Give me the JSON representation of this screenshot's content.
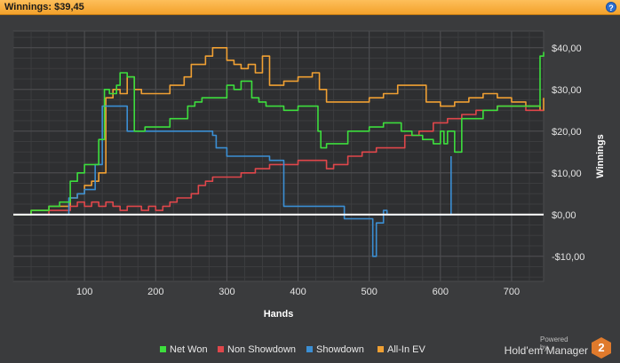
{
  "window": {
    "title": "Winnings: $39,45",
    "help_glyph": "?"
  },
  "branding": {
    "powered_by": "Powered by",
    "product": "Hold'em Manager",
    "logo_number": "2"
  },
  "legend": [
    {
      "label": "Net Won",
      "color": "#3dde3d"
    },
    {
      "label": "Non Showdown",
      "color": "#e0474b"
    },
    {
      "label": "Showdown",
      "color": "#3b8fd4"
    },
    {
      "label": "All-In EV",
      "color": "#f0a033"
    }
  ],
  "chart_data": {
    "type": "line",
    "xlabel": "Hands",
    "ylabel": "Winnings",
    "xlim": [
      0,
      745
    ],
    "ylim": [
      -16,
      44
    ],
    "xticks": [
      100,
      200,
      300,
      400,
      500,
      600,
      700
    ],
    "yticks": [
      -10,
      0,
      10,
      20,
      30,
      40
    ],
    "ytick_labels": [
      "-$10,00",
      "$0,00",
      "$10,00",
      "$20,00",
      "$30,00",
      "$40,00"
    ],
    "grid": true,
    "zero_line": true,
    "legend_position": "bottom",
    "series": [
      {
        "name": "Net Won",
        "color": "#3dde3d",
        "x": [
          0,
          25,
          50,
          65,
          80,
          90,
          100,
          110,
          120,
          128,
          135,
          145,
          150,
          160,
          170,
          185,
          200,
          220,
          245,
          255,
          265,
          300,
          310,
          320,
          335,
          345,
          355,
          380,
          400,
          420,
          428,
          432,
          440,
          460,
          470,
          490,
          500,
          520,
          545,
          560,
          575,
          590,
          600,
          605,
          610,
          620,
          630,
          640,
          660,
          680,
          700,
          720,
          735,
          740,
          745
        ],
        "y": [
          0,
          1,
          2,
          3,
          8,
          10,
          12,
          12,
          18,
          30,
          29,
          31,
          34,
          33,
          20,
          21,
          21,
          23,
          26,
          27,
          28,
          31,
          30,
          32,
          28,
          27,
          26,
          25,
          26,
          26,
          20,
          16,
          17,
          17,
          20,
          20,
          21,
          22,
          20,
          19,
          18,
          17,
          20,
          17,
          20,
          15,
          23,
          23,
          25,
          26,
          26,
          26,
          26,
          38,
          39
        ]
      },
      {
        "name": "Non Showdown",
        "color": "#e0474b",
        "x": [
          0,
          25,
          50,
          80,
          90,
          100,
          110,
          120,
          130,
          140,
          150,
          160,
          170,
          180,
          190,
          200,
          210,
          220,
          230,
          240,
          250,
          260,
          270,
          280,
          290,
          300,
          320,
          340,
          360,
          380,
          400,
          420,
          430,
          440,
          450,
          470,
          490,
          510,
          530,
          550,
          570,
          590,
          610,
          620,
          630,
          650,
          680,
          700,
          720,
          740,
          745
        ],
        "y": [
          0,
          0,
          1,
          2,
          3,
          2,
          3,
          2,
          3,
          2,
          1,
          2,
          2,
          1,
          2,
          1,
          2,
          3,
          4,
          4,
          5,
          7,
          8,
          9,
          9,
          9,
          10,
          11,
          12,
          12,
          13,
          13,
          13,
          11,
          12,
          14,
          15,
          16,
          16,
          19,
          20,
          22,
          23,
          23,
          24,
          25,
          26,
          26,
          25,
          25,
          25
        ]
      },
      {
        "name": "Showdown",
        "color": "#3b8fd4",
        "x": [
          0,
          75,
          78,
          85,
          90,
          95,
          100,
          110,
          115,
          125,
          130,
          140,
          150,
          160,
          165,
          180,
          200,
          250,
          275,
          280,
          285,
          300,
          360,
          365,
          380,
          390,
          440,
          460,
          465,
          490,
          495,
          505,
          510,
          520,
          525,
          560,
          600,
          605,
          610,
          615
        ],
        "y": [
          0,
          0,
          4,
          4,
          5,
          5,
          6,
          6,
          12,
          26,
          26,
          26,
          26,
          20,
          20,
          20,
          20,
          20,
          20,
          19,
          16,
          14,
          13,
          13,
          2,
          2,
          2,
          2,
          -1,
          -1,
          -1,
          -10,
          -2,
          1,
          0,
          0,
          0,
          0,
          0,
          14
        ]
      },
      {
        "name": "All-In EV",
        "color": "#f0a033",
        "x": [
          0,
          25,
          50,
          80,
          90,
          100,
          110,
          120,
          130,
          140,
          150,
          160,
          170,
          180,
          200,
          220,
          240,
          250,
          270,
          280,
          290,
          300,
          310,
          320,
          330,
          340,
          350,
          360,
          380,
          400,
          420,
          430,
          440,
          460,
          470,
          480,
          500,
          520,
          540,
          560,
          580,
          600,
          620,
          640,
          660,
          680,
          700,
          720,
          740,
          745
        ],
        "y": [
          0,
          1,
          2,
          4,
          5,
          7,
          8,
          10,
          28,
          30,
          29,
          33,
          30,
          29,
          29,
          31,
          33,
          36,
          38,
          40,
          40,
          37,
          36,
          35,
          36,
          34,
          38,
          31,
          32,
          33,
          34,
          30,
          27,
          27,
          27,
          27,
          28,
          29,
          31,
          31,
          27,
          26,
          27,
          28,
          29,
          28,
          27,
          26,
          25,
          28
        ]
      }
    ]
  }
}
